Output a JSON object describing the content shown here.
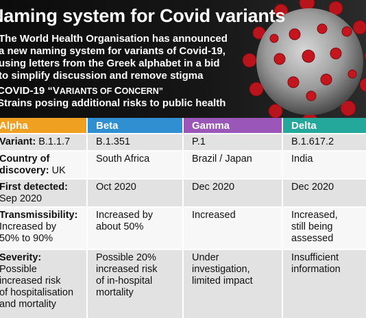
{
  "title": "Naming system for Covid variants",
  "intro_lines": [
    "The World Health Organisation has announced",
    "a new naming system for variants of Covid-19,",
    "using letters from the Greek alphabet in a bid",
    "to simplify discussion and remove stigma"
  ],
  "subheading": {
    "line1_a": "COVID-19 “V",
    "line1_b": "ARIANTS OF ",
    "line1_c": "C",
    "line1_d": "ONCERN”",
    "line2": "Strains posing additional risks to public health"
  },
  "colors": {
    "alpha": "#f0a020",
    "beta": "#2f8fd0",
    "gamma": "#9a57b8",
    "delta": "#24a89c",
    "row_gray": "#e2e2e2",
    "row_white": "#f7f7f7"
  },
  "columns": [
    "Alpha",
    "Beta",
    "Gamma",
    "Delta"
  ],
  "rows": [
    {
      "label": "Variant:",
      "label_value": "B.1.1.7",
      "values": [
        [
          "B.1.351"
        ],
        [
          "P.1"
        ],
        [
          "B.1.617.2"
        ]
      ]
    },
    {
      "label_lines": [
        "Country of",
        "discovery:"
      ],
      "label_value": "UK",
      "values": [
        [
          "South Africa"
        ],
        [
          "Brazil / Japan"
        ],
        [
          "India"
        ]
      ]
    },
    {
      "label": "First detected:",
      "label_value": "Sep 2020",
      "values": [
        [
          "Oct 2020"
        ],
        [
          "Dec 2020"
        ],
        [
          "Dec 2020"
        ]
      ]
    },
    {
      "label": "Transmissibility:",
      "label_value_lines": [
        "Increased by",
        "50% to 90%"
      ],
      "values": [
        [
          "Increased by",
          "about 50%"
        ],
        [
          "Increased"
        ],
        [
          "Increased,",
          "still being",
          "assessed"
        ]
      ]
    },
    {
      "label": "Severity:",
      "label_value_lines": [
        "Possible",
        "increased risk",
        "of hospitalisation",
        "and mortality"
      ],
      "values": [
        [
          "Possible 20%",
          "increased risk",
          "of in-hospital",
          "mortality"
        ],
        [
          "Under",
          "investigation,",
          "limited impact"
        ],
        [
          "Insufficient",
          "information"
        ]
      ]
    }
  ]
}
